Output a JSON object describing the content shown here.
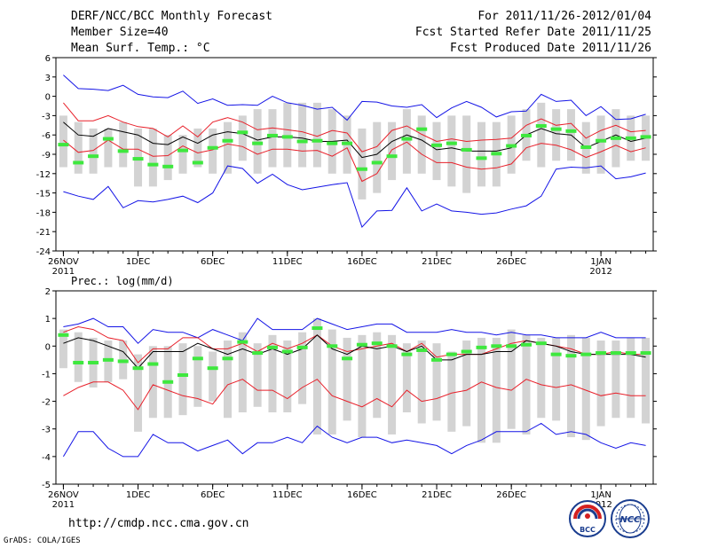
{
  "header": {
    "title": "DERF/NCC/BCC Monthly Forecast",
    "member_size": "Member Size=40",
    "variable": "Mean Surf. Temp.: °C",
    "period": "For 2011/11/26-2012/01/04",
    "started": "Fcst Started Refer Date 2011/11/25",
    "produced": "Fcst Produced Date 2011/11/26"
  },
  "precip_label": "Prec.: log(mm/d)",
  "footer": {
    "url": "http://cmdp.ncc.cma.gov.cn",
    "grads": "GrADS: COLA/IGES",
    "logo_bcc": "BCC",
    "logo_ncc": "NCC"
  },
  "colors": {
    "box": "#d3d3d3",
    "mean": "#000000",
    "inner": "#e8202a",
    "outer": "#1414e6",
    "obs": "#3ee83e"
  },
  "chart_data": [
    {
      "type": "box-whisker-line",
      "name": "temperature",
      "ylabel": "Mean Surf. Temp.: °C",
      "ylim": [
        -24,
        6
      ],
      "yticks": [
        6,
        3,
        0,
        -3,
        -6,
        -9,
        -12,
        -15,
        -18,
        -21,
        -24
      ],
      "x": [
        1,
        2,
        3,
        4,
        5,
        6,
        7,
        8,
        9,
        10,
        11,
        12,
        13,
        14,
        15,
        16,
        17,
        18,
        19,
        20,
        21,
        22,
        23,
        24,
        25,
        26,
        27,
        28,
        29,
        30,
        31,
        32,
        33,
        34,
        35,
        36,
        37,
        38,
        39,
        40
      ],
      "xlim": [
        0.5,
        40.5
      ],
      "xticks": [
        {
          "x": 1,
          "label": "26NOV",
          "sub": "2011"
        },
        {
          "x": 6,
          "label": "1DEC",
          "sub": ""
        },
        {
          "x": 11,
          "label": "6DEC",
          "sub": ""
        },
        {
          "x": 16,
          "label": "11DEC",
          "sub": ""
        },
        {
          "x": 21,
          "label": "16DEC",
          "sub": ""
        },
        {
          "x": 26,
          "label": "21DEC",
          "sub": ""
        },
        {
          "x": 31,
          "label": "26DEC",
          "sub": ""
        },
        {
          "x": 37,
          "label": "1JAN",
          "sub": "2012"
        }
      ],
      "box_low": [
        -11,
        -12,
        -12,
        -11,
        -11,
        -14,
        -14,
        -13,
        -12,
        -11,
        -12,
        -12,
        -10,
        -12,
        -11,
        -11,
        -11,
        -11,
        -12,
        -12,
        -16,
        -15,
        -13,
        -12,
        -12,
        -13,
        -14,
        -15,
        -14,
        -14,
        -12,
        -10,
        -11,
        -10,
        -10,
        -12,
        -12,
        -11,
        -10,
        -10
      ],
      "box_high": [
        -3,
        -4,
        -5,
        -5,
        -4,
        -5,
        -5,
        -6,
        -6,
        -5,
        -5,
        -4,
        -3,
        -2,
        -2,
        -1,
        -1,
        -1,
        -2,
        -3,
        -5,
        -4,
        -4,
        -2,
        -3,
        -4,
        -3,
        -3,
        -4,
        -4,
        -3,
        -2,
        -1,
        -2,
        -2,
        -4,
        -3,
        -2,
        -3,
        -3
      ],
      "mean": [
        -4,
        -6,
        -6.2,
        -5,
        -5.5,
        -6,
        -7.3,
        -7.5,
        -6.3,
        -7.3,
        -6,
        -5.5,
        -5.8,
        -6.8,
        -6.3,
        -6.3,
        -6.5,
        -7,
        -7,
        -6.8,
        -9.5,
        -9,
        -7,
        -6,
        -6.8,
        -8.3,
        -8,
        -8.5,
        -8.5,
        -8.5,
        -8,
        -6,
        -5,
        -5.8,
        -6,
        -8,
        -7,
        -6,
        -7,
        -6.5
      ],
      "inner_high": [
        -1,
        -3.8,
        -3.8,
        -3,
        -4,
        -4.7,
        -5,
        -6.3,
        -4.6,
        -6.3,
        -4,
        -3.3,
        -4,
        -5.2,
        -4.9,
        -5.2,
        -5.5,
        -6.2,
        -5.3,
        -5.7,
        -8.6,
        -7.8,
        -5.3,
        -4.6,
        -5.9,
        -7,
        -6.6,
        -7,
        -6.8,
        -6.7,
        -6.5,
        -4.5,
        -3.5,
        -4.5,
        -4.2,
        -6.5,
        -5.3,
        -4.5,
        -5.5,
        -5.3
      ],
      "inner_low": [
        -6.8,
        -8.7,
        -8.4,
        -6.8,
        -8.2,
        -8.2,
        -9.3,
        -9.2,
        -7.7,
        -8.8,
        -8.3,
        -7.4,
        -7.8,
        -9,
        -8.2,
        -8.2,
        -8.5,
        -8.4,
        -9.3,
        -8,
        -13.2,
        -12,
        -8.3,
        -7.1,
        -9,
        -10.3,
        -10.3,
        -11,
        -11.3,
        -11.1,
        -10.5,
        -8,
        -7.3,
        -7.6,
        -8.3,
        -9.5,
        -8.6,
        -7.6,
        -8.6,
        -8
      ],
      "outer_high": [
        3.3,
        1.2,
        1.1,
        0.9,
        1.7,
        0.3,
        -0.1,
        -0.2,
        0.8,
        -1.1,
        -0.4,
        -1.4,
        -1.3,
        -1.4,
        0,
        -1,
        -1.4,
        -2,
        -1.7,
        -3.7,
        -0.8,
        -0.9,
        -1.5,
        -1.7,
        -1.3,
        -3.3,
        -1.8,
        -0.8,
        -1.7,
        -3.2,
        -2.4,
        -2.3,
        0.3,
        -0.8,
        -0.6,
        -3,
        -1.6,
        -3.6,
        -3.5,
        -2.8
      ],
      "outer_low": [
        -14.8,
        -15.5,
        -16,
        -14,
        -17.3,
        -16.2,
        -16.4,
        -16,
        -15.5,
        -16.5,
        -15,
        -10.8,
        -11.2,
        -13.5,
        -12.1,
        -13.7,
        -14.5,
        -14.1,
        -13.7,
        -13.4,
        -20.3,
        -17.8,
        -17.7,
        -14.2,
        -17.8,
        -16.7,
        -17.8,
        -18,
        -18.3,
        -18.1,
        -17.5,
        -17,
        -15.5,
        -11.3,
        -11,
        -11.1,
        -10.8,
        -12.8,
        -12.5,
        -11.9
      ],
      "observed": [
        -7.5,
        -10.3,
        -9.3,
        -6.6,
        -8.5,
        -9.7,
        -10.6,
        -10.9,
        -8.4,
        -10.3,
        -8,
        -6.9,
        -5.6,
        -7.3,
        -6.1,
        -6.3,
        -7,
        -6.9,
        -7.3,
        -7.3,
        -11.3,
        -10.3,
        -9.3,
        -6.6,
        -5.1,
        -7.6,
        -7.3,
        -8.3,
        -9.6,
        -8.9,
        -7.7,
        -6.1,
        -4.6,
        -5.1,
        -5.4,
        -7.9,
        -6.9,
        -6.5,
        -6.5,
        -6.3
      ]
    },
    {
      "type": "box-whisker-line",
      "name": "precipitation",
      "ylabel": "Prec.: log(mm/d)",
      "ylim": [
        -5,
        2
      ],
      "yticks": [
        2,
        1,
        0,
        -1,
        -2,
        -3,
        -4,
        -5
      ],
      "x": [
        1,
        2,
        3,
        4,
        5,
        6,
        7,
        8,
        9,
        10,
        11,
        12,
        13,
        14,
        15,
        16,
        17,
        18,
        19,
        20,
        21,
        22,
        23,
        24,
        25,
        26,
        27,
        28,
        29,
        30,
        31,
        32,
        33,
        34,
        35,
        36,
        37,
        38,
        39,
        40
      ],
      "xlim": [
        0.5,
        40.5
      ],
      "xticks": [
        {
          "x": 1,
          "label": "26NOV",
          "sub": "2011"
        },
        {
          "x": 6,
          "label": "1DEC",
          "sub": ""
        },
        {
          "x": 11,
          "label": "6DEC",
          "sub": ""
        },
        {
          "x": 16,
          "label": "11DEC",
          "sub": ""
        },
        {
          "x": 21,
          "label": "16DEC",
          "sub": ""
        },
        {
          "x": 26,
          "label": "21DEC",
          "sub": ""
        },
        {
          "x": 31,
          "label": "26DEC",
          "sub": ""
        },
        {
          "x": 37,
          "label": "1JAN",
          "sub": "2012"
        }
      ],
      "box_low": [
        -0.8,
        -1.3,
        -1.5,
        -1.3,
        -1.2,
        -3.1,
        -2.6,
        -2.6,
        -2.5,
        -2.2,
        -2.0,
        -2.6,
        -2.4,
        -2.2,
        -2.4,
        -2.4,
        -2.1,
        -3.2,
        -3.2,
        -2.7,
        -3.3,
        -2.6,
        -3.2,
        -2.4,
        -2.8,
        -2.7,
        -3.1,
        -2.9,
        -3.5,
        -3.5,
        -3.0,
        -3.2,
        -2.6,
        -2.7,
        -3.3,
        -3.4,
        -2.9,
        -2.6,
        -2.6,
        -2.8
      ],
      "box_high": [
        0.6,
        0.5,
        0.3,
        0.2,
        0.2,
        -0.3,
        0,
        0,
        0.1,
        0,
        -0.2,
        0.2,
        0.5,
        0.1,
        0.4,
        0.2,
        0.5,
        1.0,
        0.6,
        0.3,
        0.4,
        0.5,
        0.4,
        0.1,
        0.2,
        0.1,
        -0.2,
        0.2,
        0.3,
        0.3,
        0.6,
        0.4,
        0.3,
        0.3,
        0.4,
        0.3,
        0.2,
        0.2,
        0.3,
        0.3
      ],
      "mean": [
        0.1,
        0.3,
        0.2,
        0,
        -0.2,
        -0.8,
        -0.2,
        -0.2,
        -0.2,
        0.1,
        -0.1,
        -0.3,
        -0.1,
        -0.3,
        -0.1,
        -0.3,
        -0.1,
        0.4,
        -0.1,
        -0.3,
        0.0,
        -0.1,
        0.0,
        -0.2,
        0.0,
        -0.5,
        -0.5,
        -0.3,
        -0.3,
        -0.2,
        -0.2,
        0.2,
        0.1,
        0,
        -0.2,
        -0.3,
        -0.3,
        -0.3,
        -0.3,
        -0.4
      ],
      "inner_high": [
        0.5,
        0.7,
        0.6,
        0.3,
        0.2,
        -0.6,
        -0.1,
        -0.1,
        0.3,
        0.3,
        -0.1,
        -0.1,
        0.1,
        -0.2,
        0.1,
        -0.1,
        0.1,
        0.4,
        0.0,
        -0.2,
        -0.1,
        0.0,
        0.1,
        -0.2,
        0.1,
        -0.4,
        -0.3,
        -0.3,
        -0.3,
        -0.1,
        0.1,
        0.2,
        0.1,
        0,
        -0.1,
        -0.3,
        -0.3,
        -0.2,
        -0.3,
        -0.3
      ],
      "inner_low": [
        -1.8,
        -1.5,
        -1.3,
        -1.3,
        -1.6,
        -2.3,
        -1.4,
        -1.6,
        -1.8,
        -1.9,
        -2.1,
        -1.4,
        -1.2,
        -1.6,
        -1.6,
        -1.9,
        -1.5,
        -1.2,
        -1.8,
        -2.0,
        -2.2,
        -1.9,
        -2.2,
        -1.6,
        -2.0,
        -1.9,
        -1.7,
        -1.6,
        -1.3,
        -1.5,
        -1.6,
        -1.2,
        -1.4,
        -1.5,
        -1.4,
        -1.6,
        -1.8,
        -1.7,
        -1.8,
        -1.8
      ],
      "outer_high": [
        0.7,
        0.8,
        1.0,
        0.7,
        0.7,
        0.1,
        0.6,
        0.5,
        0.5,
        0.3,
        0.6,
        0.4,
        0.2,
        1.0,
        0.6,
        0.6,
        0.6,
        1.0,
        0.8,
        0.6,
        0.7,
        0.8,
        0.8,
        0.5,
        0.5,
        0.5,
        0.6,
        0.5,
        0.5,
        0.4,
        0.5,
        0.4,
        0.4,
        0.3,
        0.3,
        0.3,
        0.5,
        0.3,
        0.3,
        0.3
      ],
      "outer_low": [
        -4.0,
        -3.1,
        -3.1,
        -3.7,
        -4.0,
        -4.0,
        -3.2,
        -3.5,
        -3.5,
        -3.8,
        -3.6,
        -3.4,
        -3.9,
        -3.5,
        -3.5,
        -3.3,
        -3.5,
        -2.9,
        -3.3,
        -3.5,
        -3.3,
        -3.3,
        -3.5,
        -3.4,
        -3.5,
        -3.6,
        -3.9,
        -3.6,
        -3.4,
        -3.1,
        -3.1,
        -3.1,
        -2.8,
        -3.2,
        -3.1,
        -3.2,
        -3.5,
        -3.7,
        -3.5,
        -3.6
      ],
      "observed": [
        0.4,
        -0.6,
        -0.6,
        -0.5,
        -0.55,
        -0.8,
        -0.65,
        -1.3,
        -1.05,
        -0.45,
        -0.8,
        -0.45,
        0.15,
        -0.25,
        -0.05,
        -0.2,
        -0.05,
        0.65,
        0.0,
        -0.45,
        0.05,
        0.1,
        0.0,
        -0.3,
        -0.15,
        -0.5,
        -0.3,
        -0.2,
        -0.05,
        0.0,
        0.0,
        0.05,
        0.1,
        -0.3,
        -0.35,
        -0.3,
        -0.25,
        -0.25,
        -0.25,
        -0.25
      ]
    }
  ]
}
